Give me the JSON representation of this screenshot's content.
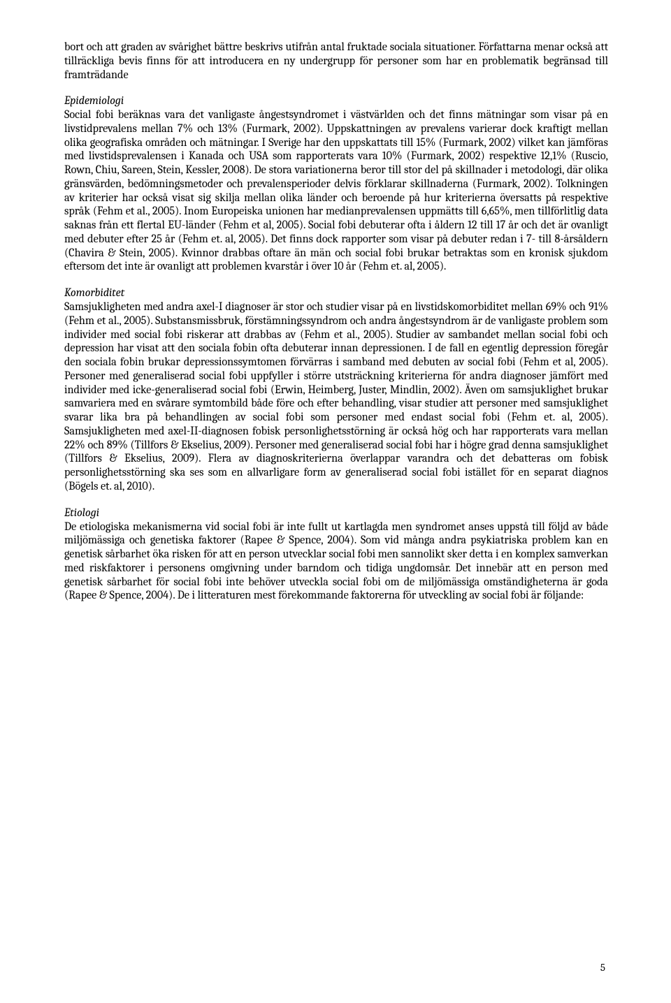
{
  "page": {
    "number": "5"
  },
  "intro_tail": "bort och att graden av svårighet bättre beskrivs utifrån antal fruktade sociala situationer. Författarna menar också att tillräckliga bevis finns för att introducera en ny undergrupp för personer som har en problematik begränsad till framträdande",
  "epidemiologi": {
    "heading": "Epidemiologi",
    "body": "Social fobi beräknas vara det vanligaste ångestsyndromet i västvärlden och det finns mätningar som visar på en livstidprevalens mellan 7% och 13% (Furmark, 2002). Uppskattningen av prevalens varierar dock kraftigt mellan olika geografiska områden och mätningar. I Sverige har den uppskattats till 15% (Furmark, 2002) vilket kan jämföras med livstidsprevalensen i Kanada och USA som rapporterats vara 10% (Furmark, 2002) respektive 12,1% (Ruscio, Rown, Chiu, Sareen, Stein, Kessler, 2008). De stora variationerna beror till stor del på skillnader i metodologi, där olika gränsvärden, bedömningsmetoder och prevalensperioder delvis förklarar skillnaderna (Furmark, 2002). Tolkningen av kriterier har också visat sig skilja mellan olika länder och beroende på hur kriterierna översatts på respektive språk (Fehm et al., 2005). Inom Europeiska unionen har medianprevalensen uppmätts till 6,65%, men tillförlitlig data saknas från ett flertal EU-länder (Fehm et al, 2005). Social fobi debuterar ofta i åldern 12 till 17 år och det är ovanligt med debuter efter 25 år (Fehm et. al, 2005). Det finns dock rapporter som visar på debuter redan i 7- till 8-årsåldern (Chavira & Stein, 2005). Kvinnor drabbas oftare än män och social fobi brukar betraktas som en kronisk sjukdom eftersom det inte är ovanligt att problemen kvarstår i över 10 år (Fehm et. al, 2005)."
  },
  "komorbiditet": {
    "heading": "Komorbiditet",
    "body": "Samsjukligheten med andra axel-I diagnoser är stor och studier visar på en livstidskomorbiditet mellan 69% och 91% (Fehm et al., 2005). Substansmissbruk, förstämningssyndrom och andra ångestsyndrom är de vanligaste problem som individer med social fobi riskerar att drabbas av (Fehm et al., 2005). Studier av sambandet mellan social fobi och depression har visat att den sociala fobin ofta debuterar innan depressionen. I de fall en egentlig depression föregår den sociala fobin brukar depressionssymtomen förvärras i samband med debuten av social fobi (Fehm et al, 2005). Personer med generaliserad social fobi uppfyller i större utsträckning kriterierna för andra diagnoser jämfört med individer med icke-generaliserad social fobi (Erwin, Heimberg, Juster, Mindlin, 2002). Även om samsjuklighet brukar samvariera med en svårare symtombild både före och efter behandling, visar studier att personer med samsjuklighet svarar lika bra på behandlingen av social fobi som personer med endast social fobi (Fehm et. al, 2005). Samsjukligheten med axel-II-diagnosen fobisk personlighetsstörning är också hög och har rapporterats vara mellan 22% och 89% (Tillfors & Ekselius, 2009). Personer med generaliserad social fobi har i högre grad denna samsjuklighet (Tillfors & Ekselius, 2009). Flera av diagnoskriterierna överlappar varandra och det debatteras om fobisk personlighetsstörning ska ses som en allvarligare form av generaliserad social fobi istället för en separat diagnos (Bögels et. al, 2010)."
  },
  "etiologi": {
    "heading": "Etiologi",
    "body": "De etiologiska mekanismerna vid social fobi är inte fullt ut kartlagda men syndromet anses uppstå till följd av både miljömässiga och genetiska faktorer (Rapee & Spence, 2004). Som vid många andra psykiatriska problem kan en genetisk sårbarhet öka risken för att en person utvecklar social fobi men sannolikt sker detta i en komplex samverkan med riskfaktorer i personens omgivning under barndom och tidiga ungdomsår. Det innebär att en person med genetisk sårbarhet för social fobi inte behöver utveckla social fobi om de miljömässiga omständigheterna är goda (Rapee & Spence, 2004). De i litteraturen mest förekommande faktorerna för utveckling av social fobi är följande:"
  }
}
